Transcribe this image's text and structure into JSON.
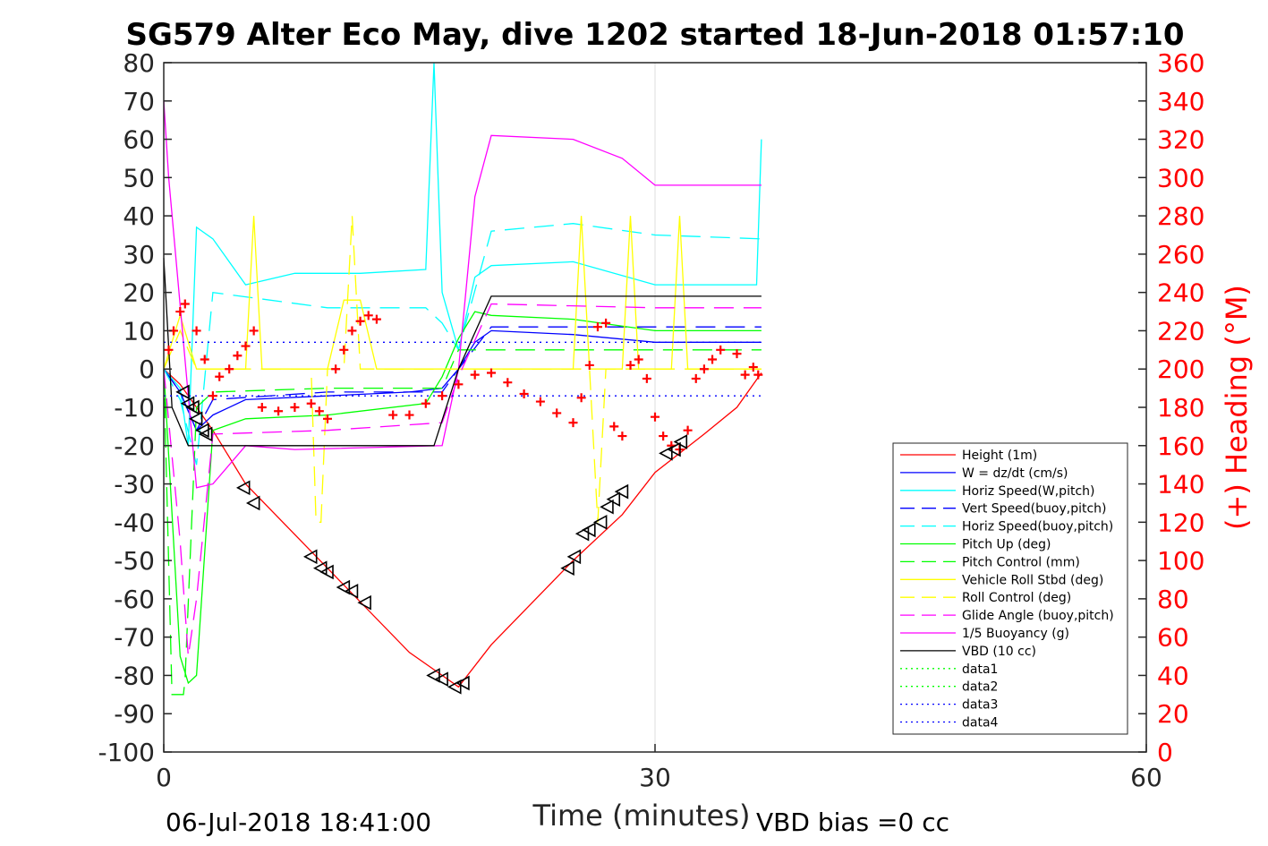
{
  "chart_data": {
    "type": "line",
    "title": "SG579 Alter Eco May, dive 1202 started 18-Jun-2018 01:57:10",
    "xlabel": "Time (minutes)",
    "ylabel": "",
    "y2label": "(+) Heading (°M)",
    "xlim": [
      0,
      60
    ],
    "ylim": [
      -100,
      80
    ],
    "y2lim": [
      0,
      360
    ],
    "xticks": [
      "0",
      "30",
      "60"
    ],
    "yticks": [
      "80",
      "70",
      "60",
      "50",
      "40",
      "30",
      "20",
      "10",
      "0",
      "-10",
      "-20",
      "-30",
      "-40",
      "-50",
      "-60",
      "-70",
      "-80",
      "-90",
      "-100"
    ],
    "y2ticks": [
      "360",
      "340",
      "320",
      "300",
      "280",
      "260",
      "240",
      "220",
      "200",
      "180",
      "160",
      "140",
      "120",
      "100",
      "80",
      "60",
      "40",
      "20",
      "0"
    ],
    "footer_left": "06-Jul-2018 18:41:00",
    "footer_right": "VBD bias =0 cc",
    "legend_position": "lower-right",
    "colors": {
      "axis": "#262626",
      "heading": "#ff0000",
      "grid": "#dcdcdc"
    },
    "series": [
      {
        "name": "Height (1m)",
        "color": "#ff0000",
        "style": "solid",
        "x": [
          0,
          1,
          2,
          3,
          5,
          10,
          15,
          17,
          18,
          20,
          25,
          28,
          30,
          33,
          35,
          36.5
        ],
        "y": [
          0,
          -4,
          -10,
          -16,
          -30,
          -52,
          -74,
          -80,
          -83,
          -72,
          -50,
          -38,
          -27,
          -17,
          -10,
          -1
        ]
      },
      {
        "name": "W = dz/dt (cm/s)",
        "color": "#0000ff",
        "style": "solid",
        "x": [
          0,
          1,
          2,
          3,
          5,
          10,
          15,
          17,
          18,
          19,
          20,
          25,
          30,
          36.5
        ],
        "y": [
          0,
          -6,
          -16,
          -12,
          -8,
          -7,
          -6,
          -5,
          0,
          7,
          10,
          9,
          7,
          7
        ]
      },
      {
        "name": "Horiz Speed(W,pitch)",
        "color": "#00ffff",
        "style": "solid",
        "x": [
          0,
          1,
          1.5,
          2,
          3,
          5,
          8,
          12,
          16,
          16.5,
          17,
          18,
          19,
          20,
          25,
          30,
          36.2,
          36.5
        ],
        "y": [
          0,
          -5,
          -20,
          37,
          34,
          22,
          25,
          25,
          26,
          80,
          20,
          5,
          24,
          27,
          28,
          22,
          22,
          60
        ]
      },
      {
        "name": "Vert Speed(buoy,pitch)",
        "color": "#0000ff",
        "style": "dash",
        "x": [
          0,
          1,
          2,
          3,
          10,
          17,
          18,
          20,
          25,
          30,
          36.5
        ],
        "y": [
          0,
          -6,
          -16,
          -8,
          -6,
          -6,
          0,
          11,
          11,
          11,
          11
        ]
      },
      {
        "name": "Horiz Speed(buoy,pitch)",
        "color": "#00ffff",
        "style": "dash",
        "x": [
          0,
          1,
          2,
          3,
          10,
          16,
          17,
          18,
          20,
          25,
          30,
          36.5
        ],
        "y": [
          0,
          -8,
          -25,
          20,
          16,
          16,
          12,
          5,
          36,
          38,
          35,
          34
        ]
      },
      {
        "name": "Pitch Up (deg)",
        "color": "#00ff00",
        "style": "solid",
        "x": [
          0,
          1,
          1.5,
          2,
          3,
          5,
          10,
          16,
          17,
          18,
          19,
          20,
          25,
          30,
          36.5
        ],
        "y": [
          0,
          -75,
          -82,
          -80,
          -16,
          -13,
          -12,
          -9,
          -2,
          8,
          15,
          14,
          13,
          10,
          10
        ]
      },
      {
        "name": "Pitch Control (mm)",
        "color": "#00ff00",
        "style": "dash",
        "x": [
          0,
          0.5,
          1.2,
          1.3,
          2,
          3,
          10,
          17,
          18,
          20,
          30,
          36.5
        ],
        "y": [
          0,
          -85,
          -85,
          -81,
          -10,
          -6,
          -5,
          -5,
          5,
          5,
          5,
          5
        ]
      },
      {
        "name": "Vehicle Roll Stbd (deg)",
        "color": "#ffff00",
        "style": "solid",
        "x": [
          0,
          1,
          2,
          3,
          5,
          5.5,
          6,
          10,
          11,
          12,
          13,
          17,
          25,
          25.5,
          26,
          27,
          28,
          28.5,
          29,
          30,
          31,
          31.5,
          32,
          36.5
        ],
        "y": [
          0,
          14,
          0,
          0,
          0,
          40,
          0,
          0,
          18,
          18,
          0,
          0,
          0,
          40,
          0,
          0,
          0,
          40,
          0,
          0,
          0,
          40,
          0,
          0
        ]
      },
      {
        "name": "Roll Control (deg)",
        "color": "#ffff00",
        "style": "dash",
        "x": [
          0,
          1,
          2,
          3,
          9,
          9.3,
          9.6,
          10,
          11,
          11.5,
          12,
          17,
          26,
          26.5,
          27,
          36.5
        ],
        "y": [
          0,
          10,
          0,
          0,
          0,
          -40,
          -40,
          0,
          0,
          40,
          0,
          0,
          0,
          -40,
          0,
          0
        ]
      },
      {
        "name": "Glide Angle (buoy,pitch)",
        "color": "#ff00ff",
        "style": "dash",
        "x": [
          0,
          1,
          1.5,
          2,
          3,
          10,
          17,
          18,
          20,
          30,
          36.5
        ],
        "y": [
          0,
          -45,
          -75,
          -60,
          -17,
          -16,
          -14,
          -2,
          17,
          16,
          16
        ]
      },
      {
        "name": "1/5 Buoyancy (g)",
        "color": "#ff00ff",
        "style": "solid",
        "x": [
          0,
          0.3,
          2,
          3,
          5,
          8,
          17,
          18,
          19,
          20,
          25,
          28,
          30,
          36.5
        ],
        "y": [
          70,
          50,
          -31,
          -30,
          -20,
          -21,
          -20,
          0,
          45,
          61,
          60,
          55,
          48,
          48
        ]
      },
      {
        "name": "VBD (10 cc)",
        "color": "#000000",
        "style": "solid",
        "x": [
          0,
          0.5,
          1.5,
          3,
          16.5,
          18,
          20,
          36.5
        ],
        "y": [
          29,
          -10,
          -20,
          -20,
          -20,
          0,
          19,
          19
        ]
      },
      {
        "name": "data1",
        "color": "#00ff00",
        "style": "dot",
        "x": [],
        "y": []
      },
      {
        "name": "data2",
        "color": "#00ff00",
        "style": "dot",
        "x": [],
        "y": []
      },
      {
        "name": "data3",
        "color": "#0000ff",
        "style": "dot",
        "x": [
          0,
          36.5
        ],
        "y": [
          7,
          7
        ]
      },
      {
        "name": "data4",
        "color": "#0000ff",
        "style": "dot",
        "x": [
          0,
          36.5
        ],
        "y": [
          -7,
          -7
        ]
      }
    ],
    "heading_points": {
      "name": "Heading (°M)",
      "color": "#ff0000",
      "marker": "+",
      "x": [
        0.3,
        0.6,
        1.0,
        1.3,
        2.0,
        2.5,
        3.0,
        3.4,
        4.0,
        4.5,
        5.0,
        5.5,
        6.0,
        7.0,
        8.0,
        9.0,
        9.5,
        10.0,
        10.5,
        11.0,
        11.5,
        12.0,
        12.5,
        13.0,
        14.0,
        15.0,
        16.0,
        17.0,
        18.0,
        19.0,
        20.0,
        21.0,
        22.0,
        23.0,
        24.0,
        25.0,
        25.5,
        26.0,
        26.5,
        27.0,
        27.5,
        28.0,
        28.5,
        29.0,
        29.5,
        30.0,
        30.5,
        31.0,
        31.5,
        32.0,
        32.5,
        33.0,
        33.5,
        34.0,
        35.0,
        35.5,
        36.0,
        36.3
      ],
      "y": [
        210,
        220,
        230,
        234,
        220,
        205,
        186,
        196,
        200,
        207,
        212,
        220,
        180,
        178,
        180,
        182,
        178,
        174,
        200,
        210,
        220,
        225,
        228,
        226,
        176,
        176,
        182,
        186,
        192,
        197,
        198,
        193,
        187,
        183,
        177,
        172,
        185,
        202,
        222,
        224,
        170,
        165,
        202,
        205,
        195,
        175,
        165,
        160,
        158,
        168,
        195,
        200,
        205,
        210,
        208,
        197,
        201,
        197
      ]
    },
    "markers": {
      "name": "triangles",
      "color": "#000000",
      "marker": "triangle",
      "x": [
        1.2,
        1.5,
        1.8,
        2.0,
        2.4,
        2.6,
        4.9,
        5.5,
        9.0,
        9.6,
        10.0,
        11.0,
        11.5,
        12.3,
        16.5,
        17.0,
        17.8,
        18.3,
        24.7,
        25.1,
        25.6,
        26.0,
        26.7,
        27.1,
        27.5,
        28.0,
        30.7,
        31.2,
        31.6
      ],
      "y": [
        -6,
        -9,
        -10,
        -13,
        -16,
        -17,
        -31,
        -35,
        -49,
        -52,
        -53,
        -57,
        -58,
        -61,
        -80,
        -81,
        -83,
        -82,
        -52,
        -49,
        -43,
        -42,
        -40,
        -36,
        -34,
        -32,
        -22,
        -21,
        -19
      ]
    }
  }
}
